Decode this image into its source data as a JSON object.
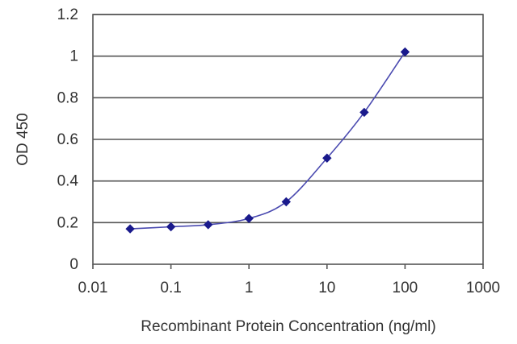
{
  "chart_data": {
    "type": "line",
    "title": "",
    "xlabel": "Recombinant Protein Concentration (ng/ml)",
    "ylabel": "OD 450",
    "xscale": "log",
    "xlim": [
      0.01,
      1000
    ],
    "ylim": [
      0,
      1.2
    ],
    "x_ticks": [
      {
        "value": 0.01,
        "label": "0.01"
      },
      {
        "value": 0.1,
        "label": "0.1"
      },
      {
        "value": 1,
        "label": "1"
      },
      {
        "value": 10,
        "label": "10"
      },
      {
        "value": 100,
        "label": "100"
      },
      {
        "value": 1000,
        "label": "1000"
      }
    ],
    "y_ticks": [
      {
        "value": 0,
        "label": "0"
      },
      {
        "value": 0.2,
        "label": "0.2"
      },
      {
        "value": 0.4,
        "label": "0.4"
      },
      {
        "value": 0.6,
        "label": "0.6"
      },
      {
        "value": 0.8,
        "label": "0.8"
      },
      {
        "value": 1.0,
        "label": "1"
      },
      {
        "value": 1.2,
        "label": "1.2"
      }
    ],
    "grid": "horizontal",
    "legend": "none",
    "series": [
      {
        "x": [
          0.03,
          0.1,
          0.3,
          1,
          3,
          10,
          30,
          100
        ],
        "y": [
          0.17,
          0.18,
          0.19,
          0.22,
          0.3,
          0.51,
          0.73,
          1.02
        ],
        "color": "#1a1a8c"
      }
    ]
  }
}
